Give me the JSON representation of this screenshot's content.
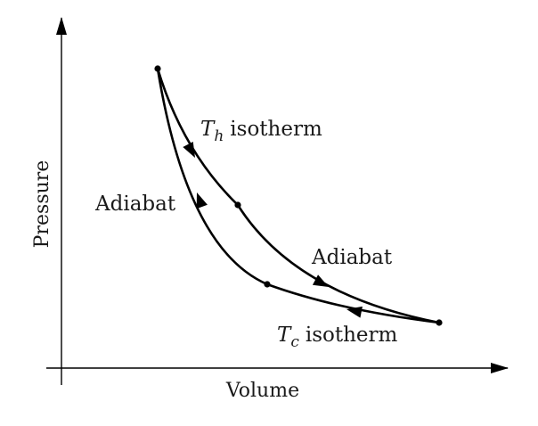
{
  "axes": {
    "x_label": "Volume",
    "y_label": "Pressure"
  },
  "labels": {
    "hot_isotherm_symbol": "T",
    "hot_isotherm_subscript": "h",
    "hot_isotherm_text": "isotherm",
    "cold_isotherm_symbol": "T",
    "cold_isotherm_subscript": "c",
    "cold_isotherm_text": "isotherm",
    "adiabat_left": "Adiabat",
    "adiabat_right": "Adiabat"
  },
  "colors": {
    "ink": "#000000",
    "text": "#1a1a1a",
    "background": "#ffffff"
  }
}
